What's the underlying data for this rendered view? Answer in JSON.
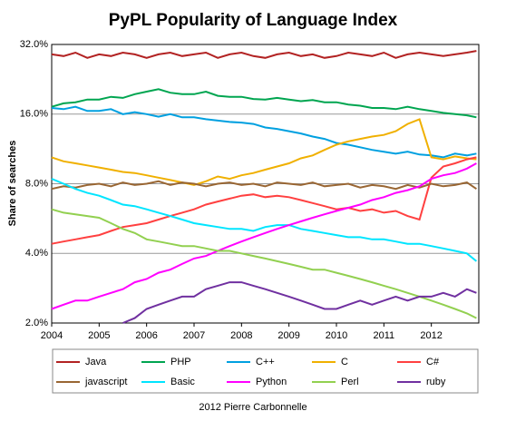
{
  "chart_data": {
    "type": "line",
    "title": "PyPL Popularity of Language Index",
    "y_label": "Share of searches",
    "credit": "2012 Pierre Carbonnelle",
    "log_scale": true,
    "grid": true,
    "xlim": [
      2004,
      2013
    ],
    "xticks": [
      2004,
      2005,
      2006,
      2007,
      2008,
      2009,
      2010,
      2011,
      2012
    ],
    "ylim": [
      2,
      32
    ],
    "yticks": [
      {
        "value": 2,
        "label": "2.0%"
      },
      {
        "value": 4,
        "label": "4.0%"
      },
      {
        "value": 8,
        "label": "8.0%"
      },
      {
        "value": 16,
        "label": "16.0%"
      },
      {
        "value": 32,
        "label": "32.0%"
      }
    ],
    "x": [
      2004,
      2004.25,
      2004.5,
      2004.75,
      2005,
      2005.25,
      2005.5,
      2005.75,
      2006,
      2006.25,
      2006.5,
      2006.75,
      2007,
      2007.25,
      2007.5,
      2007.75,
      2008,
      2008.25,
      2008.5,
      2008.75,
      2009,
      2009.25,
      2009.5,
      2009.75,
      2010,
      2010.25,
      2010.5,
      2010.75,
      2011,
      2011.25,
      2011.5,
      2011.75,
      2012,
      2012.25,
      2012.5,
      2012.75,
      2012.95
    ],
    "series": [
      {
        "name": "Java",
        "color": "#b22222",
        "values": [
          29,
          28.5,
          29.5,
          28,
          29,
          28.5,
          29.5,
          29,
          28,
          29,
          29.5,
          28.5,
          29,
          29.5,
          28,
          29,
          29.5,
          28.5,
          28,
          29,
          29.5,
          28.5,
          29,
          28,
          28.5,
          29.5,
          29,
          28.5,
          29.5,
          28,
          29,
          29.5,
          29,
          28.5,
          29,
          29.5,
          30
        ]
      },
      {
        "name": "PHP",
        "color": "#00a550",
        "values": [
          17.2,
          17.8,
          18,
          18.5,
          18.5,
          19,
          18.8,
          19.5,
          20,
          20.5,
          19.8,
          19.5,
          19.5,
          20,
          19.2,
          19,
          19,
          18.6,
          18.5,
          18.8,
          18.5,
          18.2,
          18.4,
          18,
          18,
          17.6,
          17.4,
          17,
          17,
          16.8,
          17.2,
          16.8,
          16.5,
          16.2,
          16,
          15.8,
          15.5
        ]
      },
      {
        "name": "C++",
        "color": "#00a0e0",
        "values": [
          17,
          16.8,
          17.2,
          16.5,
          16.5,
          16.8,
          16,
          16.3,
          16,
          15.6,
          16,
          15.5,
          15.5,
          15.2,
          15,
          14.8,
          14.7,
          14.5,
          14,
          13.8,
          13.5,
          13.2,
          12.8,
          12.5,
          12,
          11.8,
          11.5,
          11.2,
          11,
          10.8,
          11,
          10.7,
          10.6,
          10.4,
          10.8,
          10.6,
          10.8
        ]
      },
      {
        "name": "C",
        "color": "#f0b000",
        "values": [
          10.4,
          10,
          9.8,
          9.6,
          9.4,
          9.2,
          9,
          8.9,
          8.7,
          8.5,
          8.3,
          8.1,
          7.9,
          8.2,
          8.6,
          8.4,
          8.7,
          8.9,
          9.2,
          9.5,
          9.8,
          10.3,
          10.6,
          11.2,
          11.8,
          12.2,
          12.5,
          12.8,
          13,
          13.5,
          14.5,
          15.2,
          10.4,
          10.2,
          10.5,
          10.3,
          10.2
        ]
      },
      {
        "name": "C#",
        "color": "#ff4040",
        "values": [
          4.4,
          4.5,
          4.6,
          4.7,
          4.8,
          5,
          5.2,
          5.3,
          5.4,
          5.6,
          5.8,
          6,
          6.2,
          6.5,
          6.7,
          6.9,
          7.1,
          7.2,
          7,
          7.1,
          7,
          6.8,
          6.6,
          6.4,
          6.2,
          6.3,
          6.1,
          6.2,
          6,
          6.1,
          5.8,
          5.6,
          8.5,
          9.5,
          9.8,
          10.2,
          10.4
        ]
      },
      {
        "name": "javascript",
        "color": "#996633",
        "values": [
          7.6,
          7.8,
          7.7,
          7.9,
          8,
          7.8,
          8.1,
          7.9,
          8,
          8.2,
          7.9,
          8.1,
          8,
          7.8,
          8,
          8.1,
          7.9,
          8,
          7.8,
          8.1,
          8,
          7.9,
          8.1,
          7.8,
          7.9,
          8,
          7.7,
          7.9,
          7.8,
          7.6,
          7.9,
          7.7,
          8,
          7.8,
          7.9,
          8.1,
          7.6
        ]
      },
      {
        "name": "Basic",
        "color": "#00e5ff",
        "values": [
          8.4,
          8,
          7.6,
          7.3,
          7.1,
          6.8,
          6.5,
          6.4,
          6.2,
          6,
          5.8,
          5.6,
          5.4,
          5.3,
          5.2,
          5.1,
          5.1,
          5,
          5.2,
          5.3,
          5.3,
          5.1,
          5,
          4.9,
          4.8,
          4.7,
          4.7,
          4.6,
          4.6,
          4.5,
          4.4,
          4.4,
          4.3,
          4.2,
          4.1,
          4,
          3.7
        ]
      },
      {
        "name": "Python",
        "color": "#ff00ff",
        "values": [
          2.3,
          2.4,
          2.5,
          2.5,
          2.6,
          2.7,
          2.8,
          3,
          3.1,
          3.3,
          3.4,
          3.6,
          3.8,
          3.9,
          4.1,
          4.3,
          4.5,
          4.7,
          4.9,
          5.1,
          5.3,
          5.5,
          5.7,
          5.9,
          6.1,
          6.3,
          6.5,
          6.8,
          7,
          7.3,
          7.5,
          7.8,
          8.4,
          8.7,
          8.9,
          9.3,
          9.8
        ]
      },
      {
        "name": "Perl",
        "color": "#92d050",
        "values": [
          6.2,
          6,
          5.9,
          5.8,
          5.7,
          5.4,
          5.1,
          4.9,
          4.6,
          4.5,
          4.4,
          4.3,
          4.3,
          4.2,
          4.1,
          4.1,
          4,
          3.9,
          3.8,
          3.7,
          3.6,
          3.5,
          3.4,
          3.4,
          3.3,
          3.2,
          3.1,
          3,
          2.9,
          2.8,
          2.7,
          2.6,
          2.5,
          2.4,
          2.3,
          2.2,
          2.1
        ]
      },
      {
        "name": "ruby",
        "color": "#7030a0",
        "values": [
          null,
          null,
          null,
          null,
          null,
          null,
          2,
          2.1,
          2.3,
          2.4,
          2.5,
          2.6,
          2.6,
          2.8,
          2.9,
          3,
          3,
          2.9,
          2.8,
          2.7,
          2.6,
          2.5,
          2.4,
          2.3,
          2.3,
          2.4,
          2.5,
          2.4,
          2.5,
          2.6,
          2.5,
          2.6,
          2.6,
          2.7,
          2.6,
          2.8,
          2.7
        ]
      }
    ]
  }
}
